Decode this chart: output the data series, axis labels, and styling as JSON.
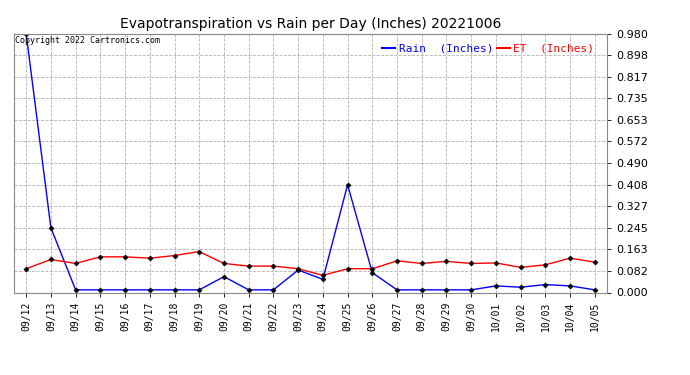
{
  "title": "Evapotranspiration vs Rain per Day (Inches) 20221006",
  "copyright": "Copyright 2022 Cartronics.com",
  "legend_rain": "Rain  (Inches)",
  "legend_et": "ET  (Inches)",
  "rain_color": "#0000ff",
  "et_color": "#ff0000",
  "background_color": "#ffffff",
  "grid_color": "#aaaaaa",
  "ylim": [
    0.0,
    0.98
  ],
  "yticks": [
    0.0,
    0.082,
    0.163,
    0.245,
    0.327,
    0.408,
    0.49,
    0.572,
    0.653,
    0.735,
    0.817,
    0.898,
    0.98
  ],
  "x_labels": [
    "09/12",
    "09/13",
    "09/14",
    "09/15",
    "09/16",
    "09/17",
    "09/18",
    "09/19",
    "09/20",
    "09/21",
    "09/22",
    "09/23",
    "09/24",
    "09/25",
    "09/26",
    "09/27",
    "09/28",
    "09/29",
    "09/30",
    "10/01",
    "10/02",
    "10/03",
    "10/04",
    "10/05"
  ],
  "rain_values": [
    0.98,
    0.245,
    0.01,
    0.01,
    0.01,
    0.01,
    0.01,
    0.01,
    0.06,
    0.01,
    0.01,
    0.085,
    0.05,
    0.408,
    0.075,
    0.01,
    0.01,
    0.01,
    0.01,
    0.025,
    0.02,
    0.03,
    0.025,
    0.01
  ],
  "et_values": [
    0.09,
    0.125,
    0.11,
    0.135,
    0.135,
    0.13,
    0.14,
    0.155,
    0.11,
    0.1,
    0.1,
    0.09,
    0.065,
    0.09,
    0.09,
    0.12,
    0.11,
    0.118,
    0.11,
    0.112,
    0.095,
    0.105,
    0.13,
    0.115
  ]
}
